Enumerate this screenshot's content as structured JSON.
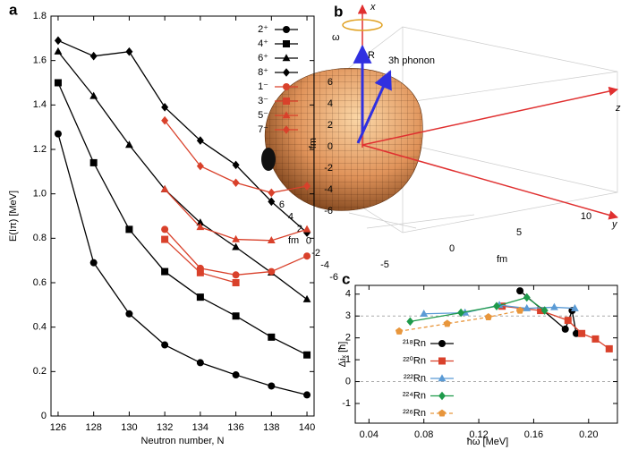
{
  "chart_data": [
    {
      "type": "line",
      "panel": "a",
      "x_label": "Neutron number, N",
      "y_label": "E(Iπ) [MeV]",
      "x": [
        126,
        128,
        130,
        132,
        134,
        136,
        138,
        140
      ],
      "xlim": [
        125.6,
        140.4
      ],
      "xticks": [
        126,
        128,
        130,
        132,
        134,
        136,
        138,
        140
      ],
      "ylim": [
        0,
        1.8
      ],
      "yticks": [
        0,
        0.2,
        0.4,
        0.6,
        0.8,
        {
          "value": 1,
          "label": "1.0"
        },
        1.2,
        1.4,
        1.6,
        1.8
      ],
      "legend": "upper right",
      "series": [
        {
          "name": "2⁺",
          "color": "#000000",
          "marker": "circle",
          "values": [
            1.27,
            0.69,
            0.46,
            0.32,
            0.24,
            0.185,
            0.135,
            0.095
          ]
        },
        {
          "name": "4⁺",
          "color": "#000000",
          "marker": "square",
          "values": [
            1.5,
            1.14,
            0.84,
            0.65,
            0.535,
            0.45,
            0.355,
            0.275
          ]
        },
        {
          "name": "6⁺",
          "color": "#000000",
          "marker": "triangle",
          "values": [
            1.64,
            1.44,
            1.22,
            1.02,
            0.87,
            0.76,
            0.645,
            0.525
          ]
        },
        {
          "name": "8⁺",
          "color": "#000000",
          "marker": "diamond",
          "values": [
            1.69,
            1.62,
            1.64,
            1.39,
            1.24,
            1.13,
            0.965,
            0.825
          ]
        },
        {
          "name": "1⁻",
          "color": "#d9412b",
          "marker": "circle",
          "values": [
            null,
            null,
            null,
            0.84,
            0.665,
            0.635,
            0.65,
            0.72
          ]
        },
        {
          "name": "3⁻",
          "color": "#d9412b",
          "marker": "square",
          "values": [
            null,
            null,
            null,
            0.795,
            0.645,
            0.6,
            null,
            null
          ]
        },
        {
          "name": "5⁻",
          "color": "#d9412b",
          "marker": "triangle",
          "values": [
            null,
            null,
            null,
            1.02,
            0.85,
            0.795,
            0.79,
            0.84
          ]
        },
        {
          "name": "7⁻",
          "color": "#d9412b",
          "marker": "diamond",
          "values": [
            null,
            null,
            null,
            1.33,
            1.125,
            1.05,
            1.005,
            1.035
          ]
        }
      ]
    },
    {
      "type": "line",
      "panel": "c",
      "x_label": "ħω [MeV]",
      "y_label": "Δiₓ [ħ]",
      "xlim": [
        0.03,
        0.221
      ],
      "xticks": [
        0.04,
        0.08,
        0.12,
        0.16,
        {
          "value": 0.2,
          "label": "0.20"
        }
      ],
      "ylim": [
        -1.9,
        4.4
      ],
      "yticks": [
        -1,
        0,
        1,
        2,
        3,
        4
      ],
      "hlines": [
        3,
        0
      ],
      "legend": "lower left",
      "series": [
        {
          "name": "²¹⁸Rn",
          "color": "#000000",
          "marker": "circle",
          "x": [
            0.15,
            0.183,
            0.188,
            0.191
          ],
          "values": [
            4.15,
            2.4,
            3.25,
            2.2
          ]
        },
        {
          "name": "²²⁰Rn",
          "color": "#d9412b",
          "marker": "square",
          "x": [
            0.137,
            0.165,
            0.185,
            0.195,
            0.205,
            0.215
          ],
          "values": [
            3.45,
            3.25,
            2.8,
            2.2,
            1.95,
            1.5
          ]
        },
        {
          "name": "²²²Rn",
          "color": "#5b9bd5",
          "marker": "triangle",
          "x": [
            0.08,
            0.11,
            0.135,
            0.155,
            0.175,
            0.19
          ],
          "values": [
            3.1,
            3.15,
            3.5,
            3.35,
            3.4,
            3.35
          ]
        },
        {
          "name": "²²⁴Rn",
          "color": "#1e9a4a",
          "marker": "diamond",
          "x": [
            0.07,
            0.107,
            0.133,
            0.155,
            0.168
          ],
          "values": [
            2.75,
            3.15,
            3.45,
            3.85,
            3.25
          ]
        },
        {
          "name": "²²⁶Rn",
          "color": "#e8963c",
          "marker": "pentagon",
          "dashed": true,
          "x": [
            0.062,
            0.097,
            0.127,
            0.15
          ],
          "values": [
            2.3,
            2.65,
            2.95,
            3.25
          ]
        }
      ]
    }
  ],
  "panel_b": {
    "label": "b",
    "axes": [
      "x",
      "z",
      "y"
    ],
    "omega": "ω",
    "vectors": [
      "R",
      "3ħ phonon"
    ],
    "unit": "fm",
    "vertical_ticks": [
      6,
      4,
      2,
      0,
      -2,
      -4,
      -6
    ],
    "left_ticks": [
      6,
      4,
      2,
      0,
      -2,
      -4,
      -6
    ],
    "right_ticks": [
      -5,
      0,
      5,
      10
    ]
  }
}
